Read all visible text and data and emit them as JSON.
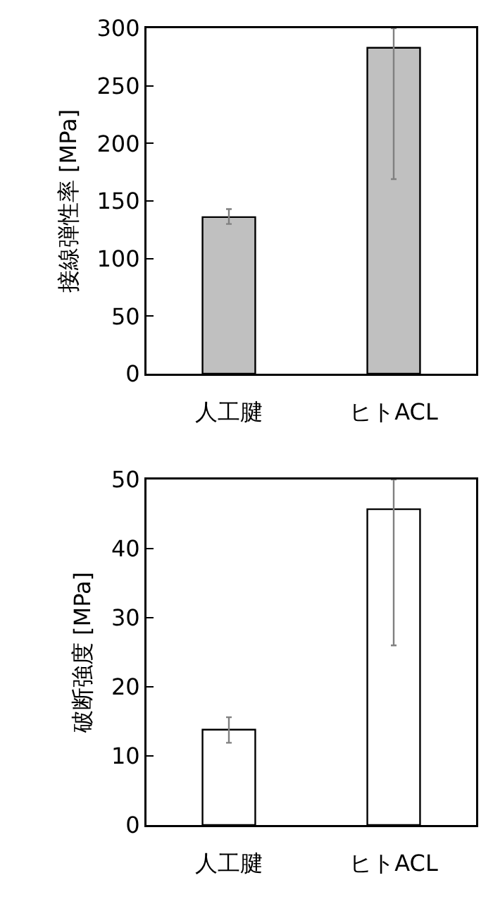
{
  "chart_data": [
    {
      "type": "bar",
      "ylabel": "接線弾性率 [MPa]",
      "categories": [
        "人工腱",
        "ヒトACL"
      ],
      "values": [
        136,
        283
      ],
      "color": "#c0c0c0",
      "errors": [
        [
          130,
          143
        ],
        [
          169,
          300
        ]
      ],
      "ylim": [
        0,
        300
      ],
      "yticks": [
        0,
        50,
        100,
        150,
        200,
        250,
        300
      ]
    },
    {
      "type": "bar",
      "ylabel": "破断強度 [MPa]",
      "categories": [
        "人工腱",
        "ヒトACL"
      ],
      "values": [
        13.8,
        45.7
      ],
      "color": "#ffffff",
      "errors": [
        [
          11.9,
          15.6
        ],
        [
          26,
          50
        ]
      ],
      "ylim": [
        0,
        50
      ],
      "yticks": [
        0,
        10,
        20,
        30,
        40,
        50
      ]
    }
  ]
}
